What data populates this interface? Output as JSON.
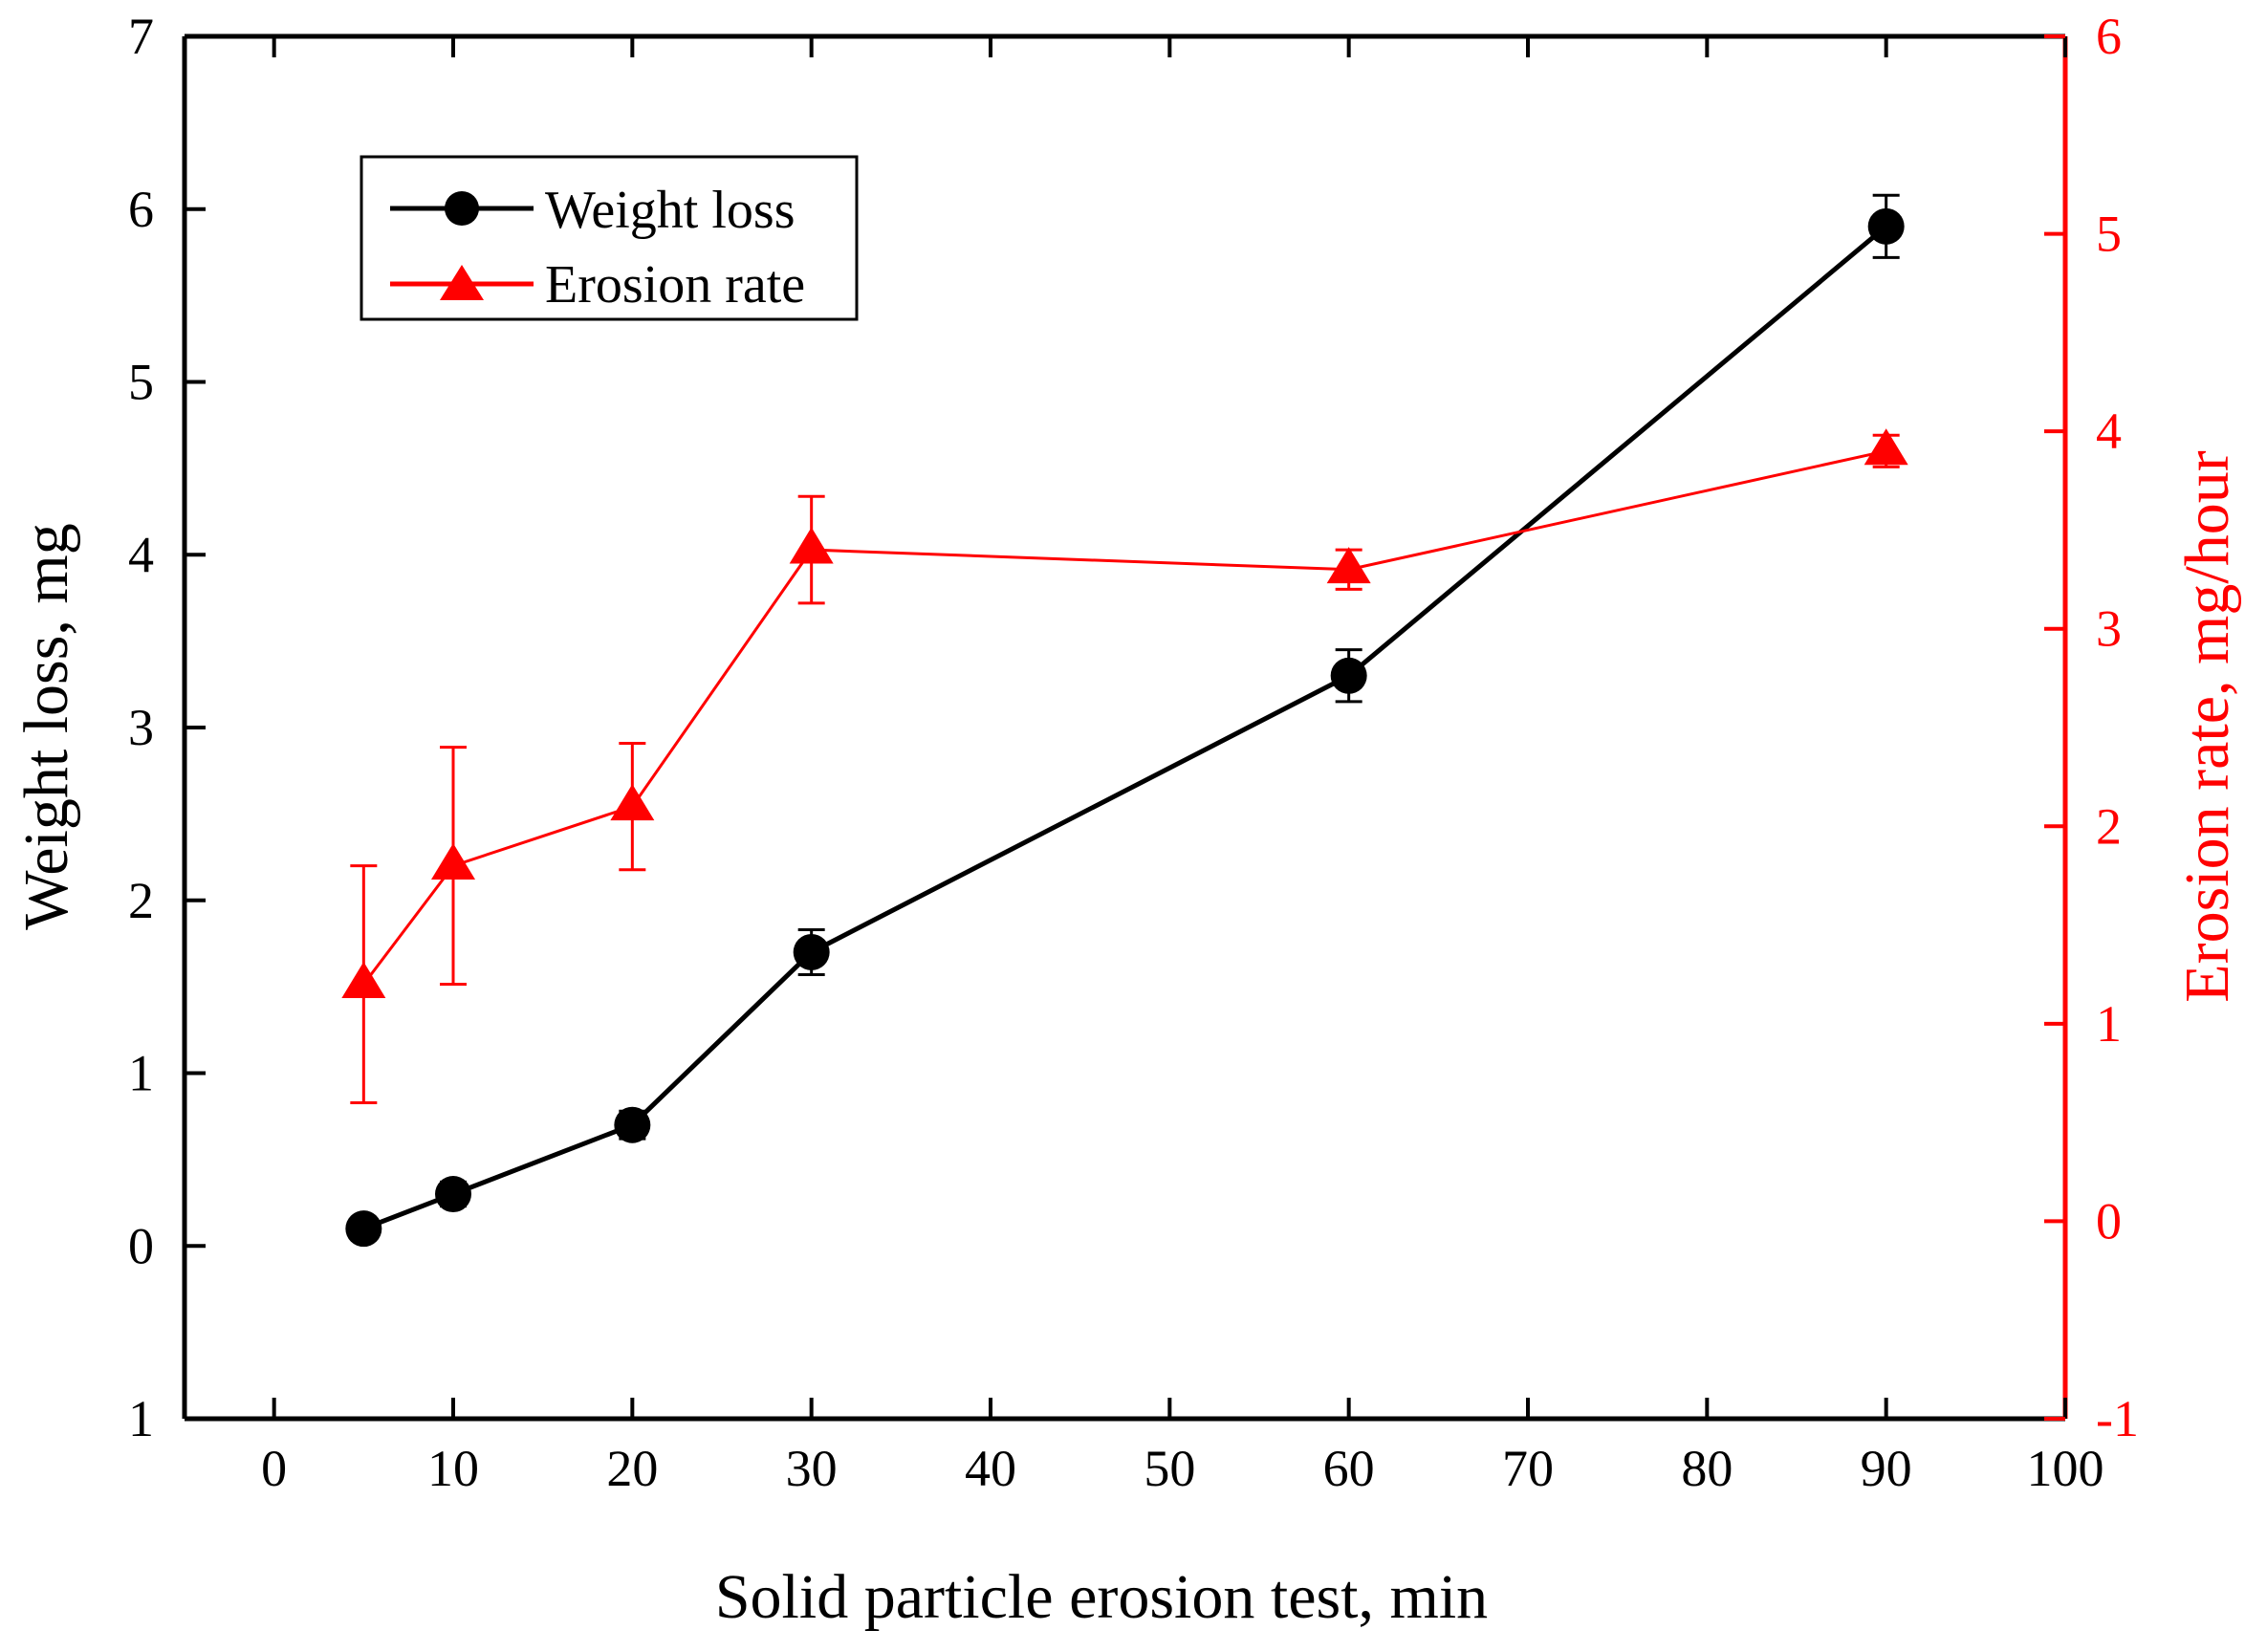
{
  "chart_data": {
    "type": "line",
    "xlabel": "Solid particle erosion test, min",
    "ylabel": "Weight loss, mg",
    "y2label": "Erosion rate, mg/hour",
    "xlim": [
      -5,
      100
    ],
    "ylim": [
      -1,
      7
    ],
    "y2lim": [
      -1,
      6
    ],
    "x_ticks": [
      0,
      10,
      20,
      30,
      40,
      50,
      60,
      70,
      80,
      90,
      100
    ],
    "y_ticks": [
      0,
      1,
      2,
      3,
      4,
      5,
      6,
      7
    ],
    "y_tick_labels": [
      "0",
      "1",
      "2",
      "3",
      "4",
      "5",
      "6",
      "7"
    ],
    "y_bottom_label": "1",
    "y2_ticks": [
      -1,
      0,
      1,
      2,
      3,
      4,
      5,
      6
    ],
    "y2_tick_labels": [
      "-1",
      "0",
      "1",
      "2",
      "3",
      "4",
      "5",
      "6"
    ],
    "legend_position": "top-left",
    "grid": false,
    "series": [
      {
        "name": "Weight loss",
        "axis": "left",
        "color": "#000000",
        "marker": "circle",
        "x": [
          5,
          10,
          20,
          30,
          60,
          90
        ],
        "y": [
          0.1,
          0.3,
          0.7,
          1.7,
          3.3,
          5.9
        ],
        "err": [
          0.04,
          0.07,
          0.08,
          0.13,
          0.15,
          0.18
        ]
      },
      {
        "name": "Erosion rate",
        "axis": "right",
        "color": "#ff0000",
        "marker": "triangle",
        "x": [
          5,
          10,
          20,
          30,
          60,
          90
        ],
        "y": [
          1.2,
          1.8,
          2.1,
          3.4,
          3.3,
          3.9
        ],
        "err": [
          0.6,
          0.6,
          0.32,
          0.27,
          0.1,
          0.08
        ]
      }
    ]
  }
}
